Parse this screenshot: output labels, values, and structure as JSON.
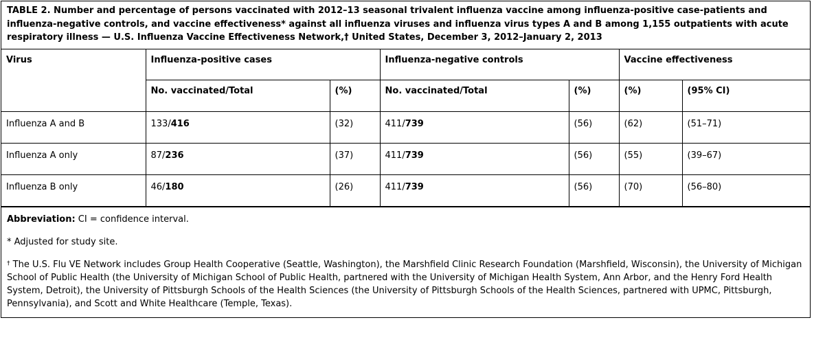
{
  "caption": "TABLE 2. Number and percentage of persons vaccinated with 2012–13 seasonal trivalent influenza vaccine among influenza-positive case-patients and influenza-negative controls, and vaccine effectiveness* against all influenza viruses and influenza virus types A and B among 1,155 outpatients with acute respiratory illness — U.S. Influenza Vaccine Effectiveness Network,† United States, December 3, 2012–January 2, 2013",
  "headers": {
    "virus": "Virus",
    "cases": "Influenza-positive cases",
    "controls": "Influenza-negative controls",
    "ve": "Vaccine effectiveness",
    "no_vacc_cases": "No. vaccinated/Total",
    "pct_cases": "(%)",
    "no_vacc_controls": "No. vaccinated/Total",
    "pct_controls": "(%)",
    "ve_pct": "(%)",
    "ve_ci": "(95% CI)"
  },
  "rows": [
    {
      "virus": "Influenza A and B",
      "cases_vacc": "133/",
      "cases_total": "416",
      "cases_pct": "(32)",
      "controls_vacc": "411/",
      "controls_total": "739",
      "controls_pct": "(56)",
      "ve_pct": "(62)",
      "ve_ci": "(51–71)"
    },
    {
      "virus": "Influenza A only",
      "cases_vacc": "87/",
      "cases_total": "236",
      "cases_pct": "(37)",
      "controls_vacc": "411/",
      "controls_total": "739",
      "controls_pct": "(56)",
      "ve_pct": "(55)",
      "ve_ci": "(39–67)"
    },
    {
      "virus": "Influenza B only",
      "cases_vacc": "46/",
      "cases_total": "180",
      "cases_pct": "(26)",
      "controls_vacc": "411/",
      "controls_total": "739",
      "controls_pct": "(56)",
      "ve_pct": "(70)",
      "ve_ci": "(56–80)"
    }
  ],
  "footnotes": {
    "abbrev_label": "Abbreviation:",
    "abbrev_text": " CI = confidence interval.",
    "star": "* Adjusted for study site.",
    "dagger_mark": "†",
    "dagger_text": " The U.S. Flu VE Network includes Group Health Cooperative (Seattle, Washington), the Marshfield Clinic Research Foundation (Marshfield, Wisconsin), the University of Michigan School of Public Health (the University of Michigan School of Public Health, partnered with the University of Michigan Health System, Ann Arbor, and the Henry Ford Health System, Detroit), the University of Pittsburgh Schools of the Health Sciences (the University of Pittsburgh Schools of the Health Sciences, partnered with UPMC, Pittsburgh, Pennsylvania), and Scott and White Healthcare (Temple, Texas)."
  }
}
